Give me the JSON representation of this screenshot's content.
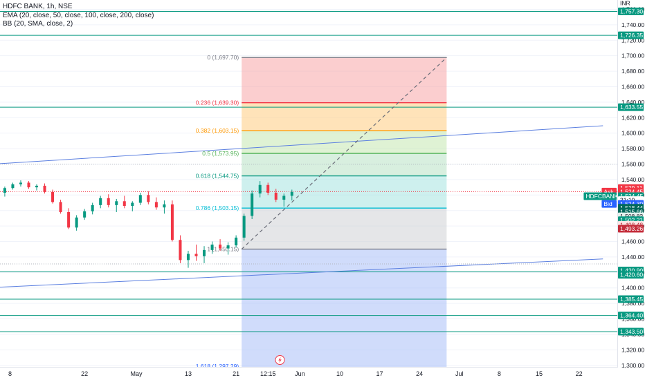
{
  "header": {
    "symbol": "HDFC BANK, 1h, NSE",
    "ema": "EMA (20, close, 50, close, 100, close, 200, close)",
    "bb": "BB (20, SMA, close, 2)",
    "currency": "INR"
  },
  "colors": {
    "level": "#089981",
    "trend": "#5b7fe0",
    "up": "#089981",
    "down": "#f23645",
    "grid": "#f0f3fa"
  },
  "chart_data": {
    "type": "candlestick",
    "ylim": [
      1298,
      1772
    ],
    "y_ticks": [
      1300,
      1320,
      1340,
      1360,
      1380,
      1400,
      1420,
      1440,
      1460,
      1480,
      1500,
      1520,
      1540,
      1560,
      1580,
      1600,
      1620,
      1640,
      1660,
      1680,
      1700,
      1720,
      1740,
      1760
    ],
    "x_ticks": [
      {
        "label": "8",
        "pos": 0.0
      },
      {
        "label": "22",
        "pos": 10.0
      },
      {
        "label": "May",
        "pos": 16.5
      },
      {
        "label": "13",
        "pos": 23.0
      },
      {
        "label": "21",
        "pos": 29.0
      },
      {
        "label": "12:15",
        "pos": 33.0
      },
      {
        "label": "Jun",
        "pos": 37.0
      },
      {
        "label": "10",
        "pos": 42.0
      },
      {
        "label": "17",
        "pos": 47.0
      },
      {
        "label": "24",
        "pos": 52.0
      },
      {
        "label": "Jul",
        "pos": 57.0
      },
      {
        "label": "8",
        "pos": 62.0
      },
      {
        "label": "15",
        "pos": 67.0
      },
      {
        "label": "22",
        "pos": 72.0
      }
    ],
    "x_range": [
      -0.6,
      76.8
    ],
    "horizontal_levels": [
      1757.3,
      1726.35,
      1633.55,
      1420.9,
      1385.45,
      1364.4,
      1343.5
    ],
    "level_labels": [
      "1,757.30",
      "1,726.35",
      "1,633.55",
      "1,420.90",
      "1,385.45",
      "1,364.40",
      "1,343.50"
    ],
    "trendlines": [
      {
        "from": [
          -0.6,
          1560.5
        ],
        "to": [
          75.0,
          1609.5
        ]
      },
      {
        "from": [
          -0.6,
          1401.0
        ],
        "to": [
          75.0,
          1437.5
        ]
      }
    ],
    "fibonacci": {
      "start_x": 29.7,
      "end_x": 55.4,
      "levels": [
        {
          "ratio": "0",
          "price": 1697.7,
          "label": "0 (1,697.70)",
          "color": "#787b86",
          "fill": "#f7a6a8"
        },
        {
          "ratio": "0.236",
          "price": 1639.3,
          "label": "0.236 (1,639.30)",
          "color": "#f23645",
          "fill": "#ffcc80"
        },
        {
          "ratio": "0.382",
          "price": 1603.15,
          "label": "0.382 (1,603.15)",
          "color": "#ff9800",
          "fill": "#c5e8b0"
        },
        {
          "ratio": "0.5",
          "price": 1573.95,
          "label": "0.5 (1,573.95)",
          "color": "#4caf50",
          "fill": "#b8e2c4"
        },
        {
          "ratio": "0.618",
          "price": 1544.75,
          "label": "0.618 (1,544.75)",
          "color": "#089981",
          "fill": "#a6e3e0"
        },
        {
          "ratio": "0.786",
          "price": 1503.15,
          "label": "0.786 (1,503.15)",
          "color": "#00bcd4",
          "fill": "#cfd1d6"
        },
        {
          "ratio": "1",
          "price": 1450.15,
          "label": "1 (1,450.15)",
          "color": "#787b86",
          "fill": "#a9bff7"
        },
        {
          "ratio": "1.618",
          "price": 1297.29,
          "label": "1.618 (1,297.29)",
          "color": "#2962ff",
          "fill": null
        }
      ]
    },
    "dashed_trend": {
      "from": [
        29.7,
        1450.15
      ],
      "to": [
        55.4,
        1697.7
      ]
    },
    "price_line": 1524.45,
    "candles": [
      [
        1523,
        1531,
        1518,
        1529
      ],
      [
        1529,
        1536,
        1527,
        1534
      ],
      [
        1534,
        1539,
        1531,
        1536
      ],
      [
        1536,
        1538,
        1528,
        1530
      ],
      [
        1530,
        1534,
        1526,
        1532
      ],
      [
        1532,
        1535,
        1522,
        1524
      ],
      [
        1524,
        1527,
        1509,
        1511
      ],
      [
        1511,
        1514,
        1496,
        1498
      ],
      [
        1498,
        1503,
        1476,
        1478
      ],
      [
        1478,
        1494,
        1474,
        1491
      ],
      [
        1491,
        1502,
        1488,
        1499
      ],
      [
        1499,
        1510,
        1495,
        1507
      ],
      [
        1507,
        1519,
        1503,
        1516
      ],
      [
        1516,
        1521,
        1504,
        1507
      ],
      [
        1507,
        1515,
        1498,
        1512
      ],
      [
        1512,
        1519,
        1503,
        1506
      ],
      [
        1506,
        1512,
        1499,
        1510
      ],
      [
        1510,
        1523,
        1507,
        1520
      ],
      [
        1520,
        1525,
        1508,
        1511
      ],
      [
        1511,
        1517,
        1501,
        1504
      ],
      [
        1504,
        1513,
        1496,
        1508
      ],
      [
        1508,
        1513,
        1460,
        1462
      ],
      [
        1462,
        1468,
        1432,
        1436
      ],
      [
        1436,
        1448,
        1426,
        1444
      ],
      [
        1444,
        1456,
        1435,
        1441
      ],
      [
        1441,
        1454,
        1432,
        1449
      ],
      [
        1449,
        1460,
        1444,
        1456
      ],
      [
        1456,
        1463,
        1448,
        1451
      ],
      [
        1451,
        1459,
        1443,
        1455
      ],
      [
        1455,
        1468,
        1452,
        1465
      ],
      [
        1465,
        1496,
        1461,
        1493
      ],
      [
        1493,
        1526,
        1489,
        1522
      ],
      [
        1522,
        1538,
        1517,
        1533
      ],
      [
        1533,
        1536,
        1520,
        1523
      ],
      [
        1523,
        1528,
        1511,
        1514
      ],
      [
        1514,
        1522,
        1505,
        1519
      ],
      [
        1519,
        1527,
        1513,
        1524
      ]
    ]
  },
  "axis_badges": [
    {
      "text": "INR",
      "price": 1768,
      "style": "plain"
    },
    {
      "text": "1,757.30",
      "price": 1757.3,
      "style": "green"
    },
    {
      "text": "1,726.35",
      "price": 1726.35,
      "style": "green"
    },
    {
      "text": "1,633.55",
      "price": 1633.55,
      "style": "green"
    },
    {
      "text": "1,529.11",
      "price": 1529.11,
      "style": "red"
    },
    {
      "text": "1,524.45",
      "price": 1524.45,
      "style": "red"
    },
    {
      "text": "1,524.45",
      "price": 1518.5,
      "style": "green"
    },
    {
      "text": "31:10",
      "price": 1513.5,
      "style": "plain"
    },
    {
      "text": "1,524.30",
      "price": 1508.5,
      "style": "blue"
    },
    {
      "text": "1,518.44",
      "price": 1503.5,
      "style": "teal"
    },
    {
      "text": "1,515.66",
      "price": 1498.5,
      "style": "teal"
    },
    {
      "text": "1,508.82",
      "price": 1492.5,
      "style": "light"
    },
    {
      "text": "1,502.21",
      "price": 1487.5,
      "style": "green"
    },
    {
      "text": "1,498.48",
      "price": 1481.5,
      "style": "pink"
    },
    {
      "text": "1,493.26",
      "price": 1476.5,
      "style": "maroon"
    },
    {
      "text": "1,420.90",
      "price": 1422.5,
      "style": "green"
    },
    {
      "text": "1,420.60",
      "price": 1417.0,
      "style": "green"
    },
    {
      "text": "1,385.45",
      "price": 1385.45,
      "style": "green"
    },
    {
      "text": "1,364.40",
      "price": 1364.4,
      "style": "green"
    },
    {
      "text": "1,343.50",
      "price": 1343.5,
      "style": "green"
    }
  ],
  "side_tags": [
    {
      "text": "Ask",
      "price": 1524.45,
      "style": "red"
    },
    {
      "text": "HDFCBANK",
      "price": 1518.5,
      "style": "green"
    },
    {
      "text": "Bid",
      "price": 1508.5,
      "style": "blue"
    }
  ],
  "bottom_icon": "lightning-bolt-icon"
}
